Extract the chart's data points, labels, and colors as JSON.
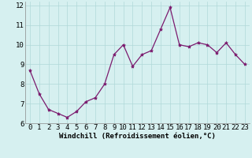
{
  "x": [
    0,
    1,
    2,
    3,
    4,
    5,
    6,
    7,
    8,
    9,
    10,
    11,
    12,
    13,
    14,
    15,
    16,
    17,
    18,
    19,
    20,
    21,
    22,
    23
  ],
  "y": [
    8.7,
    7.5,
    6.7,
    6.5,
    6.3,
    6.6,
    7.1,
    7.3,
    8.0,
    9.5,
    10.0,
    8.9,
    9.5,
    9.7,
    10.8,
    11.9,
    10.0,
    9.9,
    10.1,
    10.0,
    9.6,
    10.1,
    9.5,
    9.0
  ],
  "line_color": "#7b1a6e",
  "marker": "*",
  "marker_size": 3,
  "bg_color": "#d6f0f0",
  "grid_color": "#b0d8d8",
  "xlabel": "Windchill (Refroidissement éolien,°C)",
  "xlim": [
    -0.5,
    23.5
  ],
  "ylim": [
    6.0,
    12.2
  ],
  "yticks": [
    6,
    7,
    8,
    9,
    10,
    11,
    12
  ],
  "xticks": [
    0,
    1,
    2,
    3,
    4,
    5,
    6,
    7,
    8,
    9,
    10,
    11,
    12,
    13,
    14,
    15,
    16,
    17,
    18,
    19,
    20,
    21,
    22,
    23
  ],
  "xlabel_fontsize": 6.5,
  "tick_fontsize": 6.5,
  "linewidth": 0.9
}
